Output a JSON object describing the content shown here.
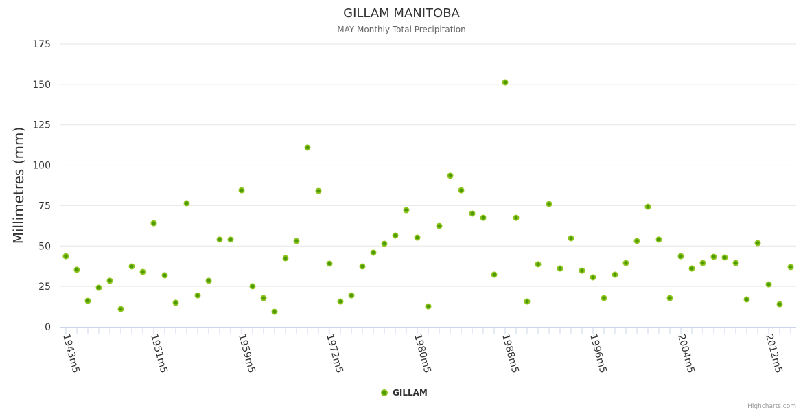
{
  "chart_data": {
    "type": "scatter",
    "title": "GILLAM MANITOBA",
    "subtitle": "MAY Monthly Total Precipitation",
    "ylabel": "Millimetres (mm)",
    "xlabel": "",
    "ylim": [
      0,
      175
    ],
    "yticks": [
      0,
      25,
      50,
      75,
      100,
      125,
      150,
      175
    ],
    "grid": true,
    "legend_position": "bottom-center",
    "xtick_labels": [
      {
        "index": 0,
        "label": "1943m5"
      },
      {
        "index": 8,
        "label": "1951m5"
      },
      {
        "index": 16,
        "label": "1959m5"
      },
      {
        "index": 24,
        "label": "1972m5"
      },
      {
        "index": 32,
        "label": "1980m5"
      },
      {
        "index": 40,
        "label": "1988m5"
      },
      {
        "index": 48,
        "label": "1996m5"
      },
      {
        "index": 56,
        "label": "2004m5"
      },
      {
        "index": 64,
        "label": "2012m5"
      }
    ],
    "series": [
      {
        "name": "GILLAM",
        "color": "#4a9a00",
        "stroke": "#8fc31f",
        "values": [
          43.7,
          35.3,
          16.1,
          24.2,
          28.5,
          11.0,
          37.4,
          34.0,
          64.1,
          31.9,
          14.9,
          76.5,
          19.5,
          28.5,
          54.0,
          54.0,
          84.5,
          25.1,
          17.8,
          9.3,
          42.5,
          53.1,
          110.9,
          84.1,
          39.1,
          15.7,
          19.5,
          37.4,
          45.9,
          51.4,
          56.5,
          72.2,
          55.2,
          12.7,
          62.4,
          93.5,
          84.5,
          70.1,
          67.5,
          32.3,
          151.2,
          67.5,
          15.7,
          38.7,
          76.0,
          36.1,
          54.8,
          34.8,
          30.6,
          17.8,
          32.3,
          39.5,
          53.1,
          74.3,
          54.0,
          17.8,
          43.7,
          36.1,
          39.5,
          43.3,
          42.9,
          39.5,
          17.0,
          51.8,
          26.3,
          14.0,
          37.0
        ]
      }
    ]
  },
  "credit": "Highcharts.com"
}
